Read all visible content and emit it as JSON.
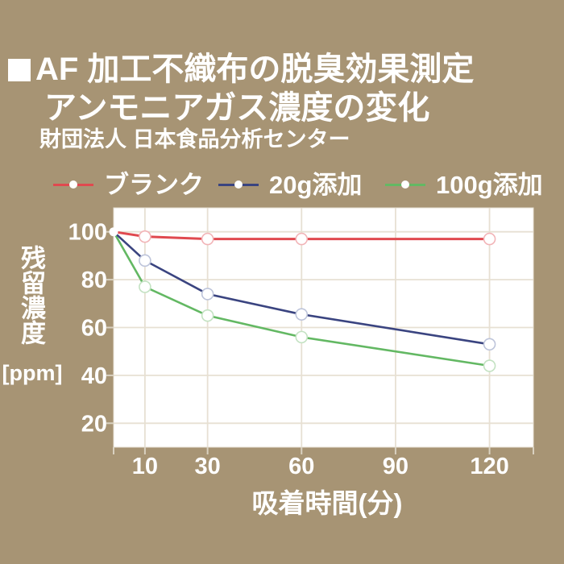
{
  "header": {
    "title_bullet": "■",
    "title_line1": "AF 加工不織布の脱臭効果測定",
    "title_line2": "アンモニアガス濃度の変化",
    "subtitle": "財団法人 日本食品分析センター"
  },
  "legend": {
    "items": [
      {
        "label": "ブランク"
      },
      {
        "label": "20g添加"
      },
      {
        "label": "100g添加"
      }
    ]
  },
  "axis": {
    "y_title": "残留濃度",
    "y_unit": "[ppm]",
    "x_title": "吸着時間(分)"
  },
  "chart_data": {
    "type": "line",
    "title": "AF 加工不織布の脱臭効果測定 アンモニアガス濃度の変化",
    "x": [
      0,
      10,
      30,
      60,
      120
    ],
    "series": [
      {
        "name": "ブランク",
        "color": "#e0494f",
        "marker_stroke": "#f2b4b7",
        "values": [
          100,
          98,
          97,
          97,
          97
        ]
      },
      {
        "name": "20g添加",
        "color": "#3a4480",
        "marker_stroke": "#bdc4da",
        "values": [
          100,
          88,
          74,
          65.5,
          53
        ]
      },
      {
        "name": "100g添加",
        "color": "#63b863",
        "marker_stroke": "#c3e2c2",
        "values": [
          100,
          77,
          65,
          56,
          44
        ]
      }
    ],
    "xlabel": "吸着時間(分)",
    "ylabel": "残留濃度 [ppm]",
    "xticks": [
      10,
      30,
      60,
      90,
      120
    ],
    "yticks": [
      100,
      80,
      60,
      40,
      20
    ],
    "xlim": [
      0,
      134
    ],
    "ylim": [
      10,
      110
    ],
    "grid": true,
    "legend_position": "top",
    "marker": "white-open-circle"
  },
  "colors": {
    "background": "#a79474",
    "plot_background": "#ffffff",
    "gridline": "#e7e0d3",
    "tick": "#d9d1c0",
    "text": "#ffffff"
  }
}
